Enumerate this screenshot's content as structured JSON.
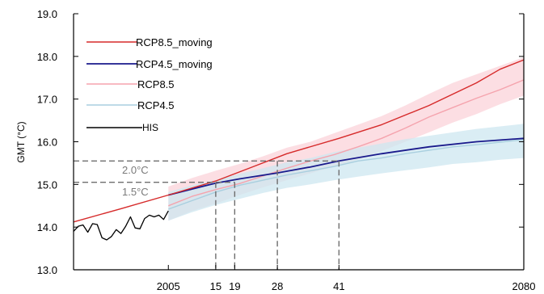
{
  "chart_data": {
    "type": "line",
    "xlabel": "",
    "ylabel": "GMT (°C)",
    "xlim": [
      1985,
      2080
    ],
    "ylim": [
      13.0,
      19.0
    ],
    "y_ticks": [
      13.0,
      14.0,
      15.0,
      16.0,
      17.0,
      18.0,
      19.0
    ],
    "y_tick_labels": [
      "13.0",
      "14.0",
      "15.0",
      "16.0",
      "17.0",
      "18.0",
      "19.0"
    ],
    "x_ticks": [
      2005,
      2015,
      2019,
      2028,
      2041,
      2080
    ],
    "x_tick_labels": [
      "2005",
      "15",
      "19",
      "28",
      "41",
      "2080"
    ],
    "grid": false,
    "legend_position": "top-left",
    "series": [
      {
        "name": "RCP8.5_moving",
        "color": "#d62a2a",
        "x": [
          1985,
          1995,
          2005,
          2015,
          2023,
          2030,
          2041,
          2050,
          2060,
          2070,
          2075,
          2080
        ],
        "y": [
          14.12,
          14.43,
          14.75,
          15.08,
          15.42,
          15.72,
          16.08,
          16.4,
          16.85,
          17.38,
          17.7,
          17.92
        ]
      },
      {
        "name": "RCP4.5_moving",
        "color": "#1a1a8c",
        "x": [
          2005,
          2015,
          2020,
          2028,
          2035,
          2041,
          2050,
          2060,
          2070,
          2080
        ],
        "y": [
          14.75,
          15.03,
          15.13,
          15.27,
          15.41,
          15.55,
          15.72,
          15.88,
          16.0,
          16.08
        ]
      },
      {
        "name": "RCP8.5",
        "color": "#f5a3ad",
        "band_color": "#fbd3da",
        "x": [
          2005,
          2010,
          2015,
          2020,
          2025,
          2030,
          2035,
          2040,
          2045,
          2050,
          2055,
          2060,
          2065,
          2070,
          2075,
          2080
        ],
        "y": [
          14.5,
          14.72,
          14.88,
          15.02,
          15.2,
          15.38,
          15.55,
          15.7,
          15.88,
          16.08,
          16.32,
          16.58,
          16.8,
          17.02,
          17.22,
          17.45
        ],
        "lower": [
          14.15,
          14.38,
          14.55,
          14.75,
          14.93,
          15.1,
          15.26,
          15.42,
          15.58,
          15.78,
          16.0,
          16.22,
          16.45,
          16.65,
          16.88,
          17.08
        ],
        "upper": [
          14.95,
          15.15,
          15.32,
          15.48,
          15.66,
          15.86,
          16.0,
          16.2,
          16.4,
          16.6,
          16.85,
          17.12,
          17.38,
          17.58,
          17.78,
          17.98
        ]
      },
      {
        "name": "RCP4.5",
        "color": "#a9cfdf",
        "band_color": "#cde7f0",
        "x": [
          2005,
          2010,
          2015,
          2020,
          2025,
          2030,
          2035,
          2040,
          2045,
          2050,
          2055,
          2060,
          2065,
          2070,
          2075,
          2080
        ],
        "y": [
          14.42,
          14.62,
          14.82,
          14.98,
          15.1,
          15.22,
          15.32,
          15.42,
          15.55,
          15.62,
          15.72,
          15.8,
          15.88,
          15.93,
          15.99,
          16.05
        ],
        "lower": [
          14.15,
          14.35,
          14.52,
          14.66,
          14.8,
          14.92,
          15.0,
          15.1,
          15.18,
          15.26,
          15.33,
          15.4,
          15.48,
          15.52,
          15.58,
          15.62
        ],
        "upper": [
          14.82,
          14.98,
          15.1,
          15.25,
          15.38,
          15.52,
          15.62,
          15.76,
          15.86,
          15.96,
          16.06,
          16.14,
          16.22,
          16.3,
          16.36,
          16.42
        ]
      },
      {
        "name": "HIS",
        "color": "#000000",
        "x": [
          1985,
          1986,
          1987,
          1988,
          1989,
          1990,
          1991,
          1992,
          1993,
          1994,
          1995,
          1996,
          1997,
          1998,
          1999,
          2000,
          2001,
          2002,
          2003,
          2004,
          2005
        ],
        "y": [
          13.9,
          14.02,
          14.05,
          13.88,
          14.08,
          14.06,
          13.75,
          13.7,
          13.78,
          13.94,
          13.85,
          14.02,
          14.24,
          13.98,
          13.96,
          14.2,
          14.28,
          14.24,
          14.28,
          14.18,
          14.38
        ]
      }
    ],
    "annotations": [
      {
        "label": "2.0°C",
        "y": 15.55,
        "x_rcp85": 2028,
        "x_rcp45": 2041
      },
      {
        "label": "1.5°C",
        "y": 15.05,
        "x_rcp85": 2015,
        "x_rcp45": 2019
      }
    ]
  }
}
